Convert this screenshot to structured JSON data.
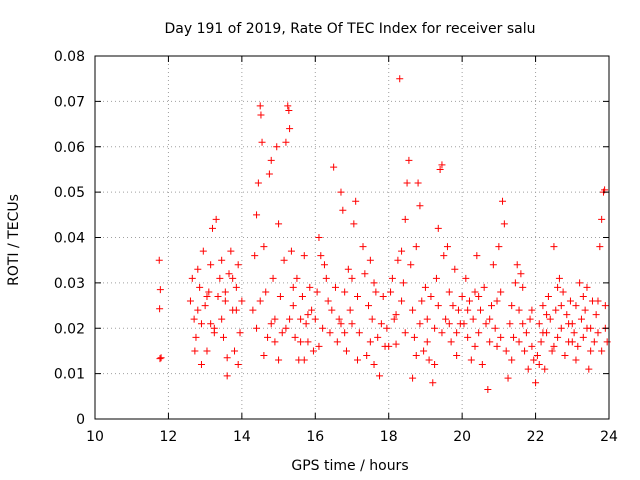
{
  "chart_data": {
    "type": "scatter",
    "title": "Day 191 of 2019, Rate Of TEC Index for receiver salu",
    "xlabel": "GPS time / hours",
    "ylabel": "ROTI / TECUs",
    "xlim": [
      10,
      24
    ],
    "ylim": [
      0,
      0.08
    ],
    "grid": true,
    "marker": "+",
    "series_color": "#ff0000",
    "x_ticks": [
      10,
      12,
      14,
      16,
      18,
      20,
      22,
      24
    ],
    "x_tick_labels": [
      "10",
      "12",
      "14",
      "16",
      "18",
      "20",
      "22",
      "24"
    ],
    "y_ticks": [
      0,
      0.01,
      0.02,
      0.03,
      0.04,
      0.05,
      0.06,
      0.07,
      0.08
    ],
    "y_tick_labels": [
      "0",
      "0.01",
      "0.02",
      "0.03",
      "0.04",
      "0.05",
      "0.06",
      "0.07",
      "0.08"
    ],
    "series": [
      {
        "name": "ROTI",
        "points": [
          [
            11.75,
            0.035
          ],
          [
            11.78,
            0.0285
          ],
          [
            11.76,
            0.0243
          ],
          [
            11.77,
            0.0133
          ],
          [
            11.8,
            0.0135
          ],
          [
            12.6,
            0.026
          ],
          [
            12.65,
            0.031
          ],
          [
            12.7,
            0.022
          ],
          [
            12.75,
            0.018
          ],
          [
            12.8,
            0.033
          ],
          [
            12.85,
            0.029
          ],
          [
            12.9,
            0.021
          ],
          [
            12.95,
            0.037
          ],
          [
            13.0,
            0.025
          ],
          [
            13.05,
            0.015
          ],
          [
            13.1,
            0.028
          ],
          [
            13.15,
            0.034
          ],
          [
            13.2,
            0.042
          ],
          [
            13.25,
            0.02
          ],
          [
            13.3,
            0.044
          ],
          [
            13.35,
            0.027
          ],
          [
            13.4,
            0.031
          ],
          [
            13.45,
            0.022
          ],
          [
            13.5,
            0.018
          ],
          [
            13.55,
            0.026
          ],
          [
            13.6,
            0.0095
          ],
          [
            13.65,
            0.032
          ],
          [
            13.7,
            0.037
          ],
          [
            13.75,
            0.024
          ],
          [
            13.8,
            0.015
          ],
          [
            13.85,
            0.029
          ],
          [
            13.9,
            0.034
          ],
          [
            13.95,
            0.019
          ],
          [
            14.0,
            0.026
          ],
          [
            12.72,
            0.015
          ],
          [
            12.9,
            0.012
          ],
          [
            13.05,
            0.027
          ],
          [
            13.25,
            0.019
          ],
          [
            13.45,
            0.035
          ],
          [
            13.6,
            0.0135
          ],
          [
            13.75,
            0.031
          ],
          [
            13.9,
            0.012
          ],
          [
            12.8,
            0.024
          ],
          [
            13.15,
            0.021
          ],
          [
            13.55,
            0.028
          ],
          [
            13.85,
            0.024
          ],
          [
            14.3,
            0.024
          ],
          [
            14.35,
            0.036
          ],
          [
            14.4,
            0.045
          ],
          [
            14.45,
            0.052
          ],
          [
            14.5,
            0.069
          ],
          [
            14.52,
            0.067
          ],
          [
            14.55,
            0.061
          ],
          [
            14.6,
            0.038
          ],
          [
            14.65,
            0.028
          ],
          [
            14.7,
            0.018
          ],
          [
            14.75,
            0.054
          ],
          [
            14.8,
            0.057
          ],
          [
            14.85,
            0.031
          ],
          [
            14.9,
            0.022
          ],
          [
            14.95,
            0.06
          ],
          [
            15.0,
            0.043
          ],
          [
            15.05,
            0.027
          ],
          [
            15.1,
            0.019
          ],
          [
            15.15,
            0.035
          ],
          [
            15.2,
            0.061
          ],
          [
            15.25,
            0.069
          ],
          [
            15.28,
            0.068
          ],
          [
            15.3,
            0.064
          ],
          [
            15.35,
            0.037
          ],
          [
            15.4,
            0.025
          ],
          [
            15.45,
            0.018
          ],
          [
            15.5,
            0.031
          ],
          [
            15.55,
            0.013
          ],
          [
            15.6,
            0.022
          ],
          [
            15.65,
            0.027
          ],
          [
            15.7,
            0.036
          ],
          [
            15.75,
            0.021
          ],
          [
            15.8,
            0.017
          ],
          [
            15.85,
            0.029
          ],
          [
            15.9,
            0.024
          ],
          [
            15.95,
            0.015
          ],
          [
            14.4,
            0.02
          ],
          [
            14.6,
            0.014
          ],
          [
            14.8,
            0.021
          ],
          [
            15.0,
            0.013
          ],
          [
            15.2,
            0.02
          ],
          [
            15.4,
            0.029
          ],
          [
            15.6,
            0.017
          ],
          [
            15.8,
            0.023
          ],
          [
            14.5,
            0.026
          ],
          [
            14.9,
            0.017
          ],
          [
            15.3,
            0.022
          ],
          [
            15.7,
            0.013
          ],
          [
            16.0,
            0.022
          ],
          [
            16.05,
            0.028
          ],
          [
            16.1,
            0.04
          ],
          [
            16.15,
            0.036
          ],
          [
            16.2,
            0.02
          ],
          [
            16.3,
            0.031
          ],
          [
            16.35,
            0.026
          ],
          [
            16.4,
            0.019
          ],
          [
            16.5,
            0.0555
          ],
          [
            16.55,
            0.029
          ],
          [
            16.6,
            0.017
          ],
          [
            16.65,
            0.022
          ],
          [
            16.7,
            0.05
          ],
          [
            16.75,
            0.046
          ],
          [
            16.8,
            0.028
          ],
          [
            16.85,
            0.015
          ],
          [
            16.9,
            0.033
          ],
          [
            16.95,
            0.024
          ],
          [
            17.0,
            0.021
          ],
          [
            17.05,
            0.043
          ],
          [
            17.1,
            0.048
          ],
          [
            17.15,
            0.027
          ],
          [
            17.2,
            0.019
          ],
          [
            17.3,
            0.038
          ],
          [
            17.35,
            0.032
          ],
          [
            17.4,
            0.014
          ],
          [
            17.45,
            0.025
          ],
          [
            17.5,
            0.035
          ],
          [
            17.55,
            0.022
          ],
          [
            17.6,
            0.03
          ],
          [
            17.65,
            0.028
          ],
          [
            17.7,
            0.018
          ],
          [
            17.75,
            0.0095
          ],
          [
            17.8,
            0.021
          ],
          [
            17.85,
            0.027
          ],
          [
            17.95,
            0.02
          ],
          [
            16.1,
            0.016
          ],
          [
            16.45,
            0.024
          ],
          [
            16.8,
            0.019
          ],
          [
            17.15,
            0.013
          ],
          [
            17.5,
            0.017
          ],
          [
            17.9,
            0.016
          ],
          [
            16.25,
            0.034
          ],
          [
            16.7,
            0.021
          ],
          [
            17.0,
            0.031
          ],
          [
            17.6,
            0.012
          ],
          [
            18.0,
            0.016
          ],
          [
            18.05,
            0.028
          ],
          [
            18.1,
            0.031
          ],
          [
            18.15,
            0.022
          ],
          [
            18.2,
            0.0165
          ],
          [
            18.25,
            0.035
          ],
          [
            18.3,
            0.075
          ],
          [
            18.35,
            0.037
          ],
          [
            18.4,
            0.03
          ],
          [
            18.45,
            0.044
          ],
          [
            18.5,
            0.052
          ],
          [
            18.55,
            0.057
          ],
          [
            18.6,
            0.034
          ],
          [
            18.65,
            0.009
          ],
          [
            18.7,
            0.018
          ],
          [
            18.75,
            0.038
          ],
          [
            18.8,
            0.052
          ],
          [
            18.85,
            0.047
          ],
          [
            18.9,
            0.026
          ],
          [
            18.95,
            0.015
          ],
          [
            19.0,
            0.029
          ],
          [
            19.05,
            0.022
          ],
          [
            19.1,
            0.013
          ],
          [
            19.15,
            0.027
          ],
          [
            19.2,
            0.008
          ],
          [
            19.25,
            0.02
          ],
          [
            19.3,
            0.031
          ],
          [
            19.35,
            0.042
          ],
          [
            19.4,
            0.055
          ],
          [
            19.45,
            0.056
          ],
          [
            19.5,
            0.036
          ],
          [
            19.55,
            0.022
          ],
          [
            19.6,
            0.038
          ],
          [
            19.65,
            0.028
          ],
          [
            19.7,
            0.017
          ],
          [
            19.75,
            0.025
          ],
          [
            19.8,
            0.033
          ],
          [
            19.85,
            0.019
          ],
          [
            19.9,
            0.024
          ],
          [
            19.95,
            0.021
          ],
          [
            18.2,
            0.023
          ],
          [
            18.45,
            0.019
          ],
          [
            18.65,
            0.024
          ],
          [
            18.85,
            0.021
          ],
          [
            19.05,
            0.017
          ],
          [
            19.25,
            0.012
          ],
          [
            19.45,
            0.019
          ],
          [
            19.65,
            0.021
          ],
          [
            19.85,
            0.014
          ],
          [
            18.35,
            0.026
          ],
          [
            18.75,
            0.014
          ],
          [
            19.35,
            0.025
          ],
          [
            20.0,
            0.027
          ],
          [
            20.05,
            0.021
          ],
          [
            20.1,
            0.031
          ],
          [
            20.15,
            0.018
          ],
          [
            20.2,
            0.026
          ],
          [
            20.25,
            0.013
          ],
          [
            20.3,
            0.022
          ],
          [
            20.35,
            0.028
          ],
          [
            20.4,
            0.036
          ],
          [
            20.45,
            0.019
          ],
          [
            20.5,
            0.024
          ],
          [
            20.55,
            0.012
          ],
          [
            20.6,
            0.029
          ],
          [
            20.65,
            0.021
          ],
          [
            20.7,
            0.0065
          ],
          [
            20.75,
            0.017
          ],
          [
            20.8,
            0.025
          ],
          [
            20.85,
            0.034
          ],
          [
            20.9,
            0.02
          ],
          [
            20.95,
            0.016
          ],
          [
            21.0,
            0.038
          ],
          [
            21.05,
            0.028
          ],
          [
            21.1,
            0.048
          ],
          [
            21.15,
            0.043
          ],
          [
            21.2,
            0.015
          ],
          [
            21.25,
            0.009
          ],
          [
            21.3,
            0.021
          ],
          [
            21.35,
            0.025
          ],
          [
            21.4,
            0.018
          ],
          [
            21.45,
            0.03
          ],
          [
            21.5,
            0.034
          ],
          [
            21.55,
            0.024
          ],
          [
            21.6,
            0.032
          ],
          [
            21.65,
            0.029
          ],
          [
            21.7,
            0.015
          ],
          [
            21.75,
            0.019
          ],
          [
            21.8,
            0.011
          ],
          [
            21.85,
            0.022
          ],
          [
            21.9,
            0.016
          ],
          [
            21.95,
            0.013
          ],
          [
            20.15,
            0.024
          ],
          [
            20.45,
            0.027
          ],
          [
            20.75,
            0.022
          ],
          [
            21.05,
            0.018
          ],
          [
            21.35,
            0.013
          ],
          [
            21.65,
            0.021
          ],
          [
            21.9,
            0.024
          ],
          [
            20.35,
            0.016
          ],
          [
            20.95,
            0.026
          ],
          [
            21.55,
            0.017
          ],
          [
            22.0,
            0.008
          ],
          [
            22.05,
            0.014
          ],
          [
            22.1,
            0.021
          ],
          [
            22.15,
            0.017
          ],
          [
            22.2,
            0.025
          ],
          [
            22.25,
            0.011
          ],
          [
            22.3,
            0.019
          ],
          [
            22.35,
            0.027
          ],
          [
            22.4,
            0.022
          ],
          [
            22.45,
            0.015
          ],
          [
            22.5,
            0.038
          ],
          [
            22.55,
            0.024
          ],
          [
            22.6,
            0.018
          ],
          [
            22.65,
            0.031
          ],
          [
            22.7,
            0.02
          ],
          [
            22.75,
            0.028
          ],
          [
            22.8,
            0.014
          ],
          [
            22.85,
            0.023
          ],
          [
            22.9,
            0.017
          ],
          [
            22.95,
            0.026
          ],
          [
            23.0,
            0.021
          ],
          [
            23.05,
            0.019
          ],
          [
            23.1,
            0.025
          ],
          [
            23.15,
            0.016
          ],
          [
            23.2,
            0.03
          ],
          [
            23.25,
            0.022
          ],
          [
            23.3,
            0.018
          ],
          [
            23.35,
            0.024
          ],
          [
            23.4,
            0.029
          ],
          [
            23.45,
            0.011
          ],
          [
            23.5,
            0.02
          ],
          [
            23.55,
            0.026
          ],
          [
            23.6,
            0.017
          ],
          [
            23.65,
            0.023
          ],
          [
            23.7,
            0.019
          ],
          [
            23.75,
            0.038
          ],
          [
            23.8,
            0.044
          ],
          [
            23.85,
            0.05
          ],
          [
            23.88,
            0.0505
          ],
          [
            23.9,
            0.025
          ],
          [
            23.95,
            0.017
          ],
          [
            22.1,
            0.012
          ],
          [
            22.3,
            0.023
          ],
          [
            22.5,
            0.016
          ],
          [
            22.7,
            0.025
          ],
          [
            22.9,
            0.021
          ],
          [
            23.1,
            0.013
          ],
          [
            23.3,
            0.027
          ],
          [
            23.5,
            0.015
          ],
          [
            23.7,
            0.026
          ],
          [
            23.9,
            0.02
          ],
          [
            22.2,
            0.019
          ],
          [
            22.6,
            0.029
          ],
          [
            23.0,
            0.017
          ],
          [
            23.4,
            0.02
          ],
          [
            23.8,
            0.015
          ]
        ]
      }
    ]
  }
}
